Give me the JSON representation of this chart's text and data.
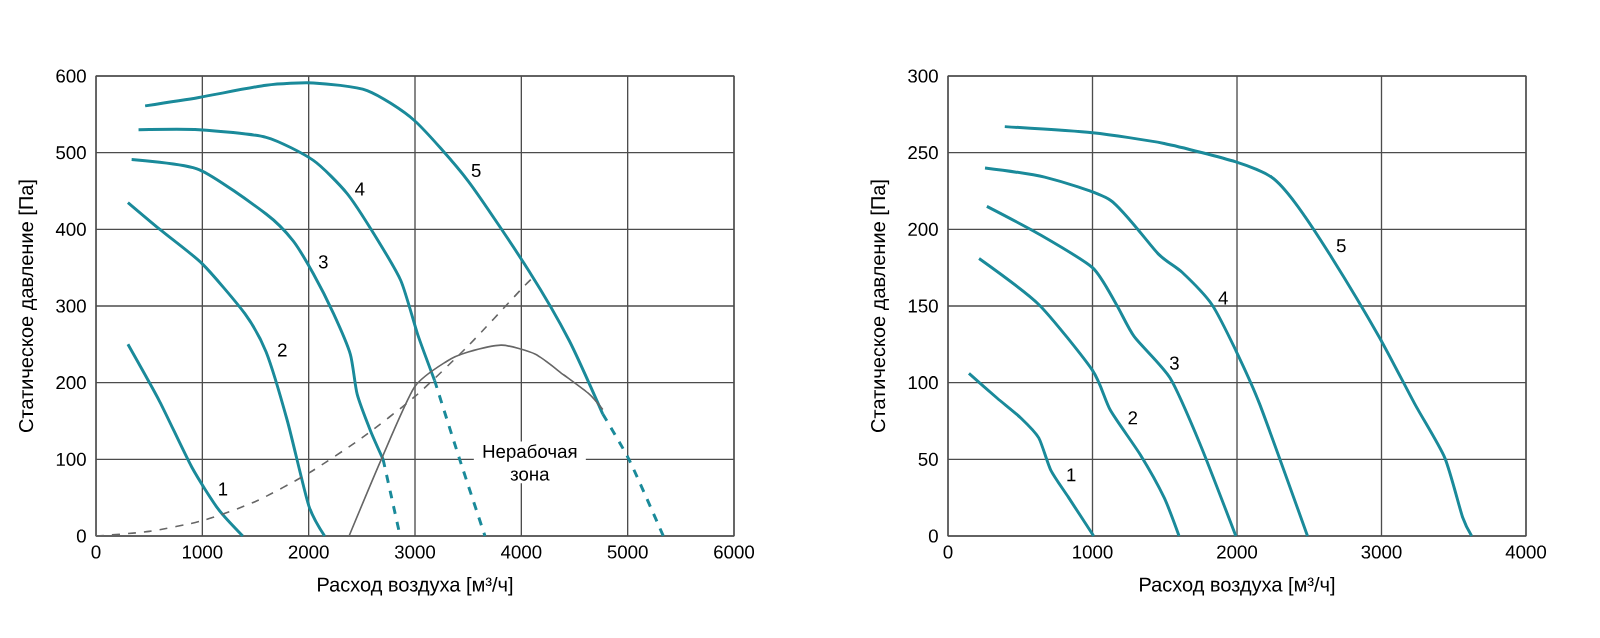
{
  "chart_data": [
    {
      "type": "line",
      "xlabel": "Расход воздуха [м³/ч]",
      "ylabel": "Статическое давление [Па]",
      "xlim": [
        0,
        6000
      ],
      "ylim": [
        0,
        600
      ],
      "xticks": [
        0,
        1000,
        2000,
        3000,
        4000,
        5000,
        6000
      ],
      "yticks": [
        0,
        100,
        200,
        300,
        400,
        500,
        600
      ],
      "grid": true,
      "series": [
        {
          "name": "1",
          "color": "#1a8a9a",
          "line_style": "solid",
          "x": [
            300,
            600,
            900,
            1150,
            1380
          ],
          "values": [
            250,
            175,
            90,
            35,
            0
          ]
        },
        {
          "name": "2",
          "color": "#1a8a9a",
          "line_style": "solid",
          "x": [
            300,
            600,
            1000,
            1400,
            1600,
            1800,
            2000,
            2150
          ],
          "values": [
            435,
            400,
            355,
            290,
            240,
            150,
            40,
            0
          ]
        },
        {
          "name": "3",
          "color": "#1a8a9a",
          "line_style": "solid",
          "x": [
            335,
            968,
            1600,
            1854,
            2044,
            2234,
            2392,
            2456,
            2582,
            2700
          ],
          "values": [
            491,
            478,
            420,
            385,
            342,
            290,
            237,
            185,
            137,
            100
          ]
        },
        {
          "color": "#1a8a9a",
          "line_style": "dashed",
          "x": [
            2700,
            2780,
            2860
          ],
          "values": [
            100,
            50,
            0
          ]
        },
        {
          "name": "4",
          "color": "#1a8a9a",
          "line_style": "solid",
          "x": [
            400,
            968,
            1600,
            2044,
            2360,
            2614,
            2867,
            3025,
            3184
          ],
          "values": [
            530,
            530,
            520,
            490,
            447,
            394,
            333,
            263,
            203
          ]
        },
        {
          "color": "#1a8a9a",
          "line_style": "dashed",
          "x": [
            3184,
            3420,
            3658
          ],
          "values": [
            203,
            100,
            0
          ]
        },
        {
          "name": "5",
          "color": "#1a8a9a",
          "line_style": "solid",
          "x": [
            462,
            968,
            1600,
            2044,
            2550,
            2994,
            3500,
            4070,
            4450,
            4766
          ],
          "values": [
            561,
            572,
            588,
            591,
            581,
            542,
            463,
            346,
            255,
            159
          ]
        },
        {
          "color": "#1a8a9a",
          "line_style": "dashed",
          "x": [
            4766,
            5019,
            5335
          ],
          "values": [
            159,
            98,
            0
          ]
        },
        {
          "color": "#666666",
          "line_style": "dashed",
          "x": [
            0,
            500,
            1000,
            1500,
            2000,
            2500,
            3000,
            3500,
            4000,
            4100
          ],
          "values": [
            0,
            6,
            20,
            45,
            82,
            128,
            182,
            248,
            322,
            336
          ]
        },
        {
          "color": "#666666",
          "line_style": "solid",
          "x": [
            2380,
            2677,
            2994,
            3300,
            3500,
            3816,
            4133,
            4400,
            4639,
            4766
          ],
          "values": [
            0,
            98,
            194,
            228,
            240,
            249,
            237,
            210,
            185,
            165
          ]
        }
      ],
      "annotations": [
        "Нерабочая зона"
      ]
    },
    {
      "type": "line",
      "xlabel": "Расход воздуха [м³/ч]",
      "ylabel": "Статическое давление [Па]",
      "xlim": [
        0,
        4000
      ],
      "ylim": [
        0,
        300
      ],
      "xticks": [
        0,
        1000,
        2000,
        3000,
        4000
      ],
      "yticks": [
        0,
        50,
        100,
        150,
        200,
        250,
        300
      ],
      "grid": true,
      "series": [
        {
          "name": "1",
          "color": "#1a8a9a",
          "line_style": "solid",
          "x": [
            145,
            339,
            504,
            628,
            711,
            835,
            1008
          ],
          "values": [
            106,
            90,
            77,
            64,
            43,
            25,
            0
          ]
        },
        {
          "name": "2",
          "color": "#1a8a9a",
          "line_style": "solid",
          "x": [
            215,
            628,
            1000,
            1124,
            1331,
            1496,
            1599
          ],
          "values": [
            181,
            151,
            108,
            82,
            53,
            25,
            0
          ]
        },
        {
          "name": "3",
          "color": "#1a8a9a",
          "line_style": "solid",
          "x": [
            269,
            628,
            1000,
            1165,
            1289,
            1537,
            1744,
            1992
          ],
          "values": [
            215,
            197,
            175,
            151,
            130,
            103,
            60,
            0
          ]
        },
        {
          "name": "4",
          "color": "#1a8a9a",
          "line_style": "solid",
          "x": [
            256,
            669,
            1124,
            1455,
            1620,
            1826,
            1992,
            2157,
            2488
          ],
          "values": [
            240,
            234,
            219,
            184,
            172,
            151,
            121,
            86,
            0
          ]
        },
        {
          "name": "5",
          "color": "#1a8a9a",
          "line_style": "solid",
          "x": [
            393,
            1000,
            1496,
            1992,
            2240,
            2405,
            2653,
            2983,
            3231,
            3438,
            3562,
            3624
          ],
          "values": [
            267,
            263,
            256,
            244,
            234,
            217,
            182,
            130,
            86,
            51,
            12,
            0
          ]
        }
      ]
    }
  ]
}
